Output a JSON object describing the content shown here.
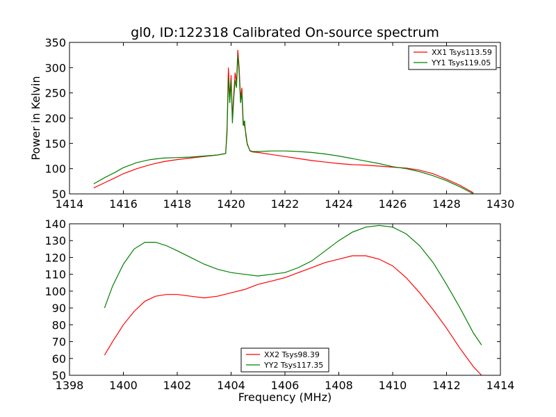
{
  "figure": {
    "title": "gl0, ID:122318 Calibrated On-source spectrum"
  },
  "chart_data": [
    {
      "type": "line",
      "title": "gl0, ID:122318 Calibrated On-source spectrum",
      "xlabel": "",
      "ylabel": "Power in Kelvin",
      "xlim": [
        1414,
        1430
      ],
      "ylim": [
        50,
        350
      ],
      "xticks": [
        1414,
        1416,
        1418,
        1420,
        1422,
        1424,
        1426,
        1428,
        1430
      ],
      "yticks": [
        50,
        100,
        150,
        200,
        250,
        300,
        350
      ],
      "grid": false,
      "legend_position": "top-right",
      "series": [
        {
          "name": "XX1 Tsys113.59",
          "color": "#ff0000",
          "x": [
            1414.9,
            1415.3,
            1415.7,
            1416.0,
            1416.5,
            1417.0,
            1417.5,
            1418.0,
            1418.5,
            1419.0,
            1419.5,
            1419.8,
            1419.85,
            1419.9,
            1419.95,
            1420.0,
            1420.05,
            1420.1,
            1420.15,
            1420.2,
            1420.25,
            1420.3,
            1420.35,
            1420.4,
            1420.45,
            1420.5,
            1420.55,
            1420.6,
            1420.7,
            1420.8,
            1421.0,
            1421.5,
            1422.0,
            1422.5,
            1423.0,
            1423.5,
            1424.0,
            1424.5,
            1425.0,
            1425.5,
            1426.0,
            1426.5,
            1427.0,
            1427.5,
            1428.0,
            1428.5,
            1429.0
          ],
          "values": [
            62,
            72,
            82,
            90,
            100,
            108,
            114,
            118,
            121,
            124,
            127,
            130,
            180,
            300,
            240,
            285,
            200,
            250,
            290,
            270,
            335,
            300,
            240,
            260,
            195,
            185,
            170,
            150,
            135,
            133,
            132,
            128,
            124,
            120,
            116,
            113,
            110,
            108,
            107,
            105,
            103,
            101,
            97,
            90,
            79,
            67,
            52
          ]
        },
        {
          "name": "YY1 Tsys119.05",
          "color": "#008000",
          "x": [
            1414.9,
            1415.3,
            1415.7,
            1416.0,
            1416.5,
            1417.0,
            1417.5,
            1418.0,
            1418.5,
            1419.0,
            1419.5,
            1419.8,
            1419.85,
            1419.9,
            1419.95,
            1420.0,
            1420.05,
            1420.1,
            1420.15,
            1420.2,
            1420.25,
            1420.3,
            1420.35,
            1420.4,
            1420.45,
            1420.5,
            1420.55,
            1420.6,
            1420.7,
            1420.8,
            1421.0,
            1421.5,
            1422.0,
            1422.5,
            1423.0,
            1423.5,
            1424.0,
            1424.5,
            1425.0,
            1425.5,
            1426.0,
            1426.5,
            1427.0,
            1427.5,
            1428.0,
            1428.5,
            1429.0
          ],
          "values": [
            70,
            82,
            93,
            102,
            112,
            118,
            121,
            122,
            123,
            125,
            127,
            130,
            170,
            280,
            230,
            275,
            190,
            240,
            275,
            260,
            325,
            290,
            230,
            250,
            185,
            195,
            165,
            148,
            136,
            134,
            134,
            135,
            135,
            134,
            132,
            129,
            125,
            120,
            115,
            110,
            104,
            100,
            94,
            86,
            76,
            64,
            50
          ]
        }
      ]
    },
    {
      "type": "line",
      "title": "",
      "xlabel": "Frequency (MHz)",
      "ylabel": "",
      "xlim": [
        1398,
        1414
      ],
      "ylim": [
        50,
        140
      ],
      "xticks": [
        1398,
        1400,
        1402,
        1404,
        1406,
        1408,
        1410,
        1412,
        1414
      ],
      "yticks": [
        50,
        60,
        70,
        80,
        90,
        100,
        110,
        120,
        130,
        140
      ],
      "grid": false,
      "legend_position": "bottom-center",
      "series": [
        {
          "name": "XX2 Tsys98.39",
          "color": "#ff0000",
          "x": [
            1399.3,
            1399.6,
            1400.0,
            1400.4,
            1400.8,
            1401.2,
            1401.6,
            1402.0,
            1402.5,
            1403.0,
            1403.5,
            1404.0,
            1404.5,
            1405.0,
            1405.5,
            1406.0,
            1406.5,
            1407.0,
            1407.5,
            1408.0,
            1408.5,
            1409.0,
            1409.5,
            1410.0,
            1410.5,
            1411.0,
            1411.5,
            1412.0,
            1412.5,
            1413.0,
            1413.3
          ],
          "values": [
            62,
            70,
            80,
            88,
            94,
            97,
            98,
            98,
            97,
            96,
            97,
            99,
            101,
            104,
            106,
            108,
            111,
            114,
            117,
            119,
            121,
            121,
            119,
            115,
            108,
            99,
            89,
            78,
            66,
            55,
            50
          ]
        },
        {
          "name": "YY2 Tsys117.35",
          "color": "#008000",
          "x": [
            1399.3,
            1399.6,
            1400.0,
            1400.4,
            1400.8,
            1401.2,
            1401.6,
            1402.0,
            1402.5,
            1403.0,
            1403.5,
            1404.0,
            1404.5,
            1405.0,
            1405.5,
            1406.0,
            1406.5,
            1407.0,
            1407.5,
            1408.0,
            1408.5,
            1409.0,
            1409.5,
            1410.0,
            1410.5,
            1411.0,
            1411.5,
            1412.0,
            1412.5,
            1413.0,
            1413.3
          ],
          "values": [
            90,
            103,
            116,
            125,
            129,
            129,
            127,
            124,
            120,
            116,
            113,
            111,
            110,
            109,
            110,
            111,
            114,
            118,
            124,
            130,
            135,
            138,
            139,
            138,
            134,
            127,
            117,
            104,
            90,
            75,
            68
          ]
        }
      ]
    }
  ]
}
